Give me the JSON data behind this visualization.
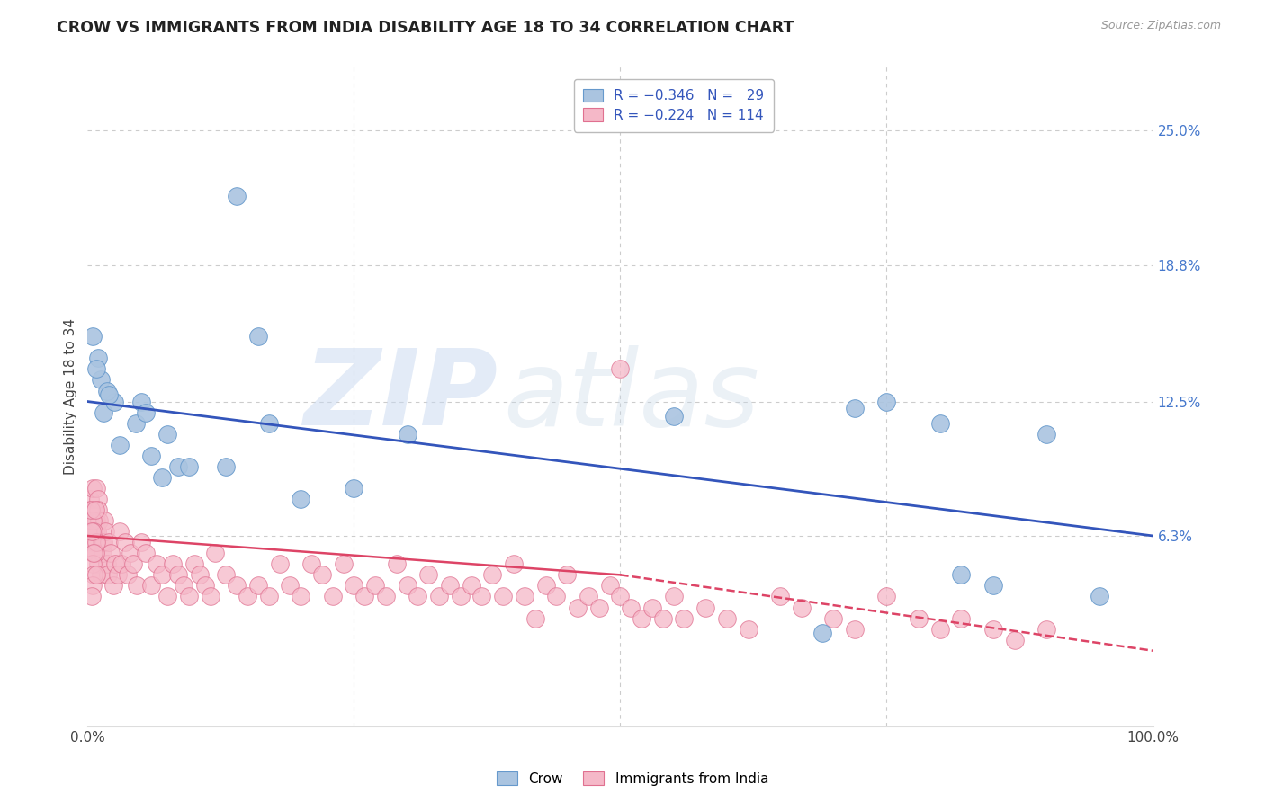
{
  "title": "CROW VS IMMIGRANTS FROM INDIA DISABILITY AGE 18 TO 34 CORRELATION CHART",
  "source": "Source: ZipAtlas.com",
  "ylabel": "Disability Age 18 to 34",
  "xlim": [
    0.0,
    100.0
  ],
  "ylim": [
    -2.5,
    28.0
  ],
  "grid_color": "#cccccc",
  "background_color": "#ffffff",
  "watermark_zip": "ZIP",
  "watermark_atlas": "atlas",
  "crow_color": "#aac4e0",
  "crow_edge_color": "#6699cc",
  "india_color": "#f5b8c8",
  "india_edge_color": "#e07090",
  "regression_blue": "#3355bb",
  "regression_pink": "#dd4466",
  "blue_line_x0": 0,
  "blue_line_y0": 12.5,
  "blue_line_x1": 100,
  "blue_line_y1": 6.3,
  "pink_line_x0": 0,
  "pink_line_y0": 6.3,
  "pink_solid_x1": 50,
  "pink_solid_y1": 4.5,
  "pink_dash_x2": 100,
  "pink_dash_y2": 1.0,
  "crow_x": [
    1.5,
    4.5,
    7.5,
    1.0,
    1.2,
    2.5,
    0.5,
    0.8,
    1.8,
    2.0,
    3.0,
    5.0,
    8.5,
    6.0,
    7.0,
    9.5,
    14.0,
    16.0,
    13.0,
    17.0,
    30.0,
    20.0,
    25.0,
    5.5,
    55.0,
    75.0,
    80.0,
    82.0,
    85.0,
    90.0,
    95.0,
    72.0,
    69.0
  ],
  "crow_y": [
    12.0,
    11.5,
    11.0,
    14.5,
    13.5,
    12.5,
    15.5,
    14.0,
    13.0,
    12.8,
    10.5,
    12.5,
    9.5,
    10.0,
    9.0,
    9.5,
    22.0,
    15.5,
    9.5,
    11.5,
    11.0,
    8.0,
    8.5,
    12.0,
    11.8,
    12.5,
    11.5,
    4.5,
    4.0,
    11.0,
    3.5,
    12.2,
    1.8
  ],
  "india_x": [
    0.1,
    0.15,
    0.2,
    0.3,
    0.35,
    0.4,
    0.45,
    0.5,
    0.5,
    0.55,
    0.6,
    0.65,
    0.7,
    0.75,
    0.8,
    0.85,
    0.9,
    0.95,
    1.0,
    1.0,
    1.1,
    1.2,
    1.3,
    1.4,
    1.5,
    1.6,
    1.7,
    1.8,
    1.9,
    2.0,
    2.2,
    2.4,
    2.6,
    2.8,
    3.0,
    3.2,
    3.5,
    3.8,
    4.0,
    4.3,
    4.6,
    5.0,
    5.5,
    6.0,
    6.5,
    7.0,
    7.5,
    8.0,
    8.5,
    9.0,
    9.5,
    10.0,
    10.5,
    11.0,
    11.5,
    12.0,
    13.0,
    14.0,
    15.0,
    16.0,
    17.0,
    18.0,
    19.0,
    20.0,
    21.0,
    22.0,
    23.0,
    24.0,
    25.0,
    26.0,
    27.0,
    28.0,
    29.0,
    30.0,
    31.0,
    32.0,
    33.0,
    34.0,
    35.0,
    36.0,
    37.0,
    38.0,
    39.0,
    40.0,
    41.0,
    42.0,
    43.0,
    44.0,
    45.0,
    46.0,
    47.0,
    48.0,
    49.0,
    50.0,
    51.0,
    52.0,
    53.0,
    54.0,
    55.0,
    56.0,
    58.0,
    60.0,
    62.0,
    65.0,
    67.0,
    70.0,
    72.0,
    75.0,
    78.0,
    80.0,
    82.0,
    85.0,
    87.0,
    90.0
  ],
  "india_y": [
    7.5,
    7.0,
    8.0,
    6.5,
    7.0,
    7.5,
    6.0,
    8.5,
    5.5,
    7.5,
    6.0,
    5.5,
    7.0,
    6.5,
    8.5,
    7.0,
    6.5,
    5.0,
    8.0,
    7.5,
    7.0,
    4.5,
    6.0,
    5.5,
    6.0,
    7.0,
    6.5,
    5.0,
    4.5,
    6.0,
    5.5,
    4.0,
    5.0,
    4.5,
    6.5,
    5.0,
    6.0,
    4.5,
    5.5,
    5.0,
    4.0,
    6.0,
    5.5,
    4.0,
    5.0,
    4.5,
    3.5,
    5.0,
    4.5,
    4.0,
    3.5,
    5.0,
    4.5,
    4.0,
    3.5,
    5.5,
    4.5,
    4.0,
    3.5,
    4.0,
    3.5,
    5.0,
    4.0,
    3.5,
    5.0,
    4.5,
    3.5,
    5.0,
    4.0,
    3.5,
    4.0,
    3.5,
    5.0,
    4.0,
    3.5,
    4.5,
    3.5,
    4.0,
    3.5,
    4.0,
    3.5,
    4.5,
    3.5,
    5.0,
    3.5,
    2.5,
    4.0,
    3.5,
    4.5,
    3.0,
    3.5,
    3.0,
    4.0,
    3.5,
    3.0,
    2.5,
    3.0,
    2.5,
    3.5,
    2.5,
    3.0,
    2.5,
    2.0,
    3.5,
    3.0,
    2.5,
    2.0,
    3.5,
    2.5,
    2.0,
    2.5,
    2.0,
    1.5,
    2.0
  ],
  "india_extra_x": [
    0.5,
    0.6,
    0.7,
    0.8,
    0.5,
    0.6,
    0.4,
    0.3,
    0.7,
    0.5,
    0.6,
    0.4,
    0.8,
    50.0
  ],
  "india_extra_y": [
    7.0,
    6.5,
    5.5,
    6.0,
    5.0,
    4.5,
    6.5,
    7.5,
    7.5,
    4.0,
    5.5,
    3.5,
    4.5,
    14.0
  ]
}
